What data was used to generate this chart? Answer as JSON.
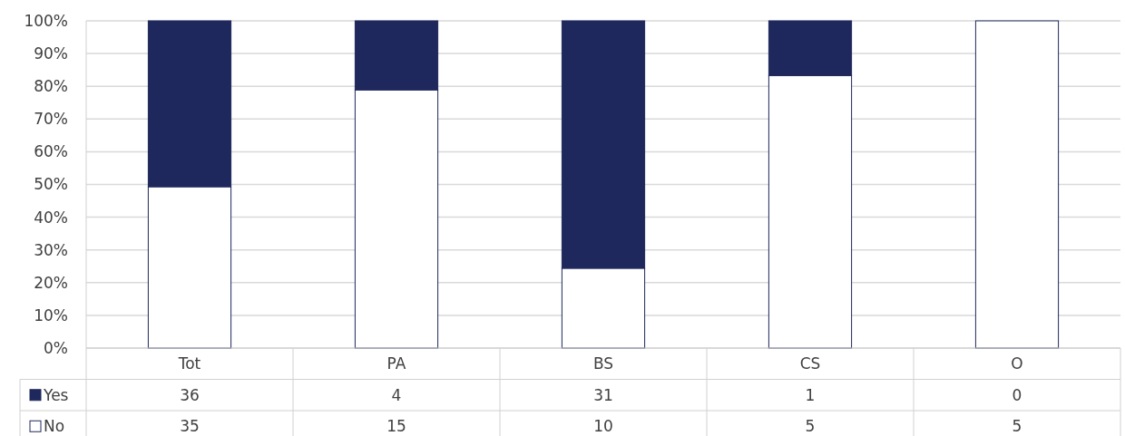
{
  "chart_data": {
    "type": "bar",
    "stacked": true,
    "categories": [
      "Tot",
      "PA",
      "BS",
      "CS",
      "O"
    ],
    "series": [
      {
        "name": "No",
        "color": "#ffffff",
        "values": [
          49.3,
          78.9,
          24.4,
          83.3,
          100
        ]
      },
      {
        "name": "Yes",
        "color": "#1f285c",
        "values": [
          50.7,
          21.1,
          75.6,
          16.7,
          0
        ]
      }
    ],
    "annotations": [
      "36",
      "4",
      "31",
      "1",
      "0",
      "35",
      "15",
      "10",
      "5",
      "5"
    ],
    "ylim": [
      0,
      100
    ],
    "yticks": [
      {
        "value": 0,
        "label": "0%"
      },
      {
        "value": 10,
        "label": "10%"
      },
      {
        "value": 20,
        "label": "20%"
      },
      {
        "value": 30,
        "label": "30%"
      },
      {
        "value": 40,
        "label": "40%"
      },
      {
        "value": 50,
        "label": "50%"
      },
      {
        "value": 60,
        "label": "60%"
      },
      {
        "value": 70,
        "label": "70%"
      },
      {
        "value": 80,
        "label": "80%"
      },
      {
        "value": 90,
        "label": "90%"
      },
      {
        "value": 100,
        "label": "100%"
      }
    ],
    "grid": "y",
    "legend": "bottom"
  }
}
